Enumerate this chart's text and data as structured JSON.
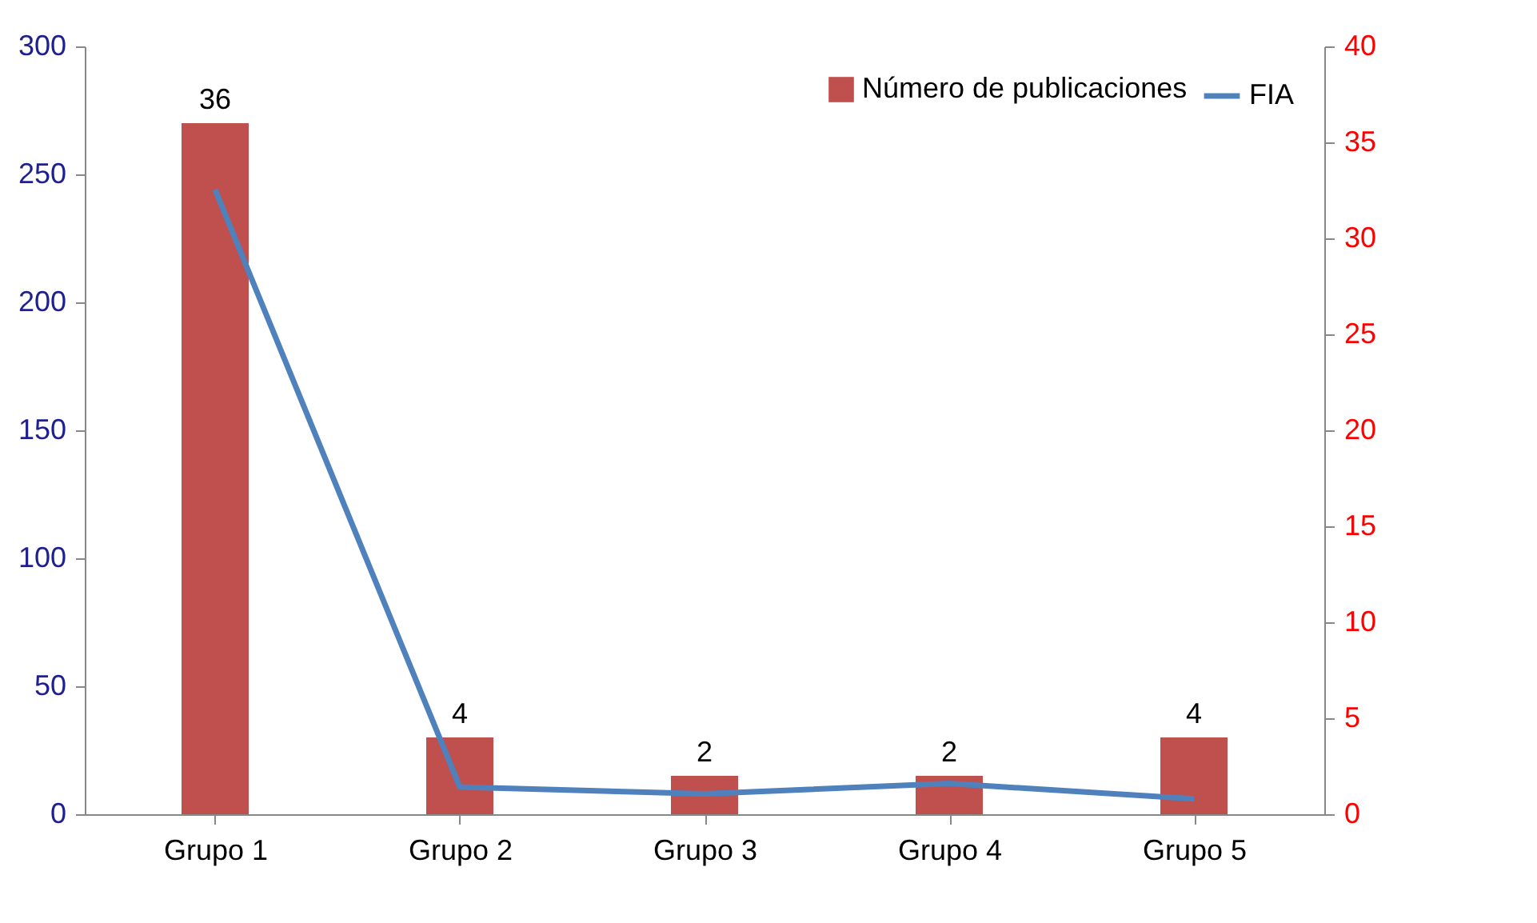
{
  "chart_data": {
    "type": "bar",
    "categories": [
      "Grupo 1",
      "Grupo 2",
      "Grupo 3",
      "Grupo 4",
      "Grupo 5"
    ],
    "series": [
      {
        "name": "Número de publicaciones",
        "axis": "y2",
        "color": "#c0504d",
        "values": [
          36,
          4,
          2,
          2,
          4
        ],
        "value_labels": [
          "36",
          "4",
          "2",
          "2",
          "4"
        ]
      },
      {
        "name": "FIA",
        "type": "line",
        "color": "#4f81bd",
        "values": [
          244,
          10.6,
          8,
          12,
          6
        ]
      }
    ],
    "ylim": [
      0,
      300
    ],
    "yticks": [
      0,
      50,
      100,
      150,
      200,
      250,
      300
    ],
    "y2lim": [
      0,
      40
    ],
    "y2ticks": [
      0,
      5,
      10,
      15,
      20,
      25,
      30,
      35,
      40
    ],
    "grid": false,
    "legend": "top right"
  }
}
